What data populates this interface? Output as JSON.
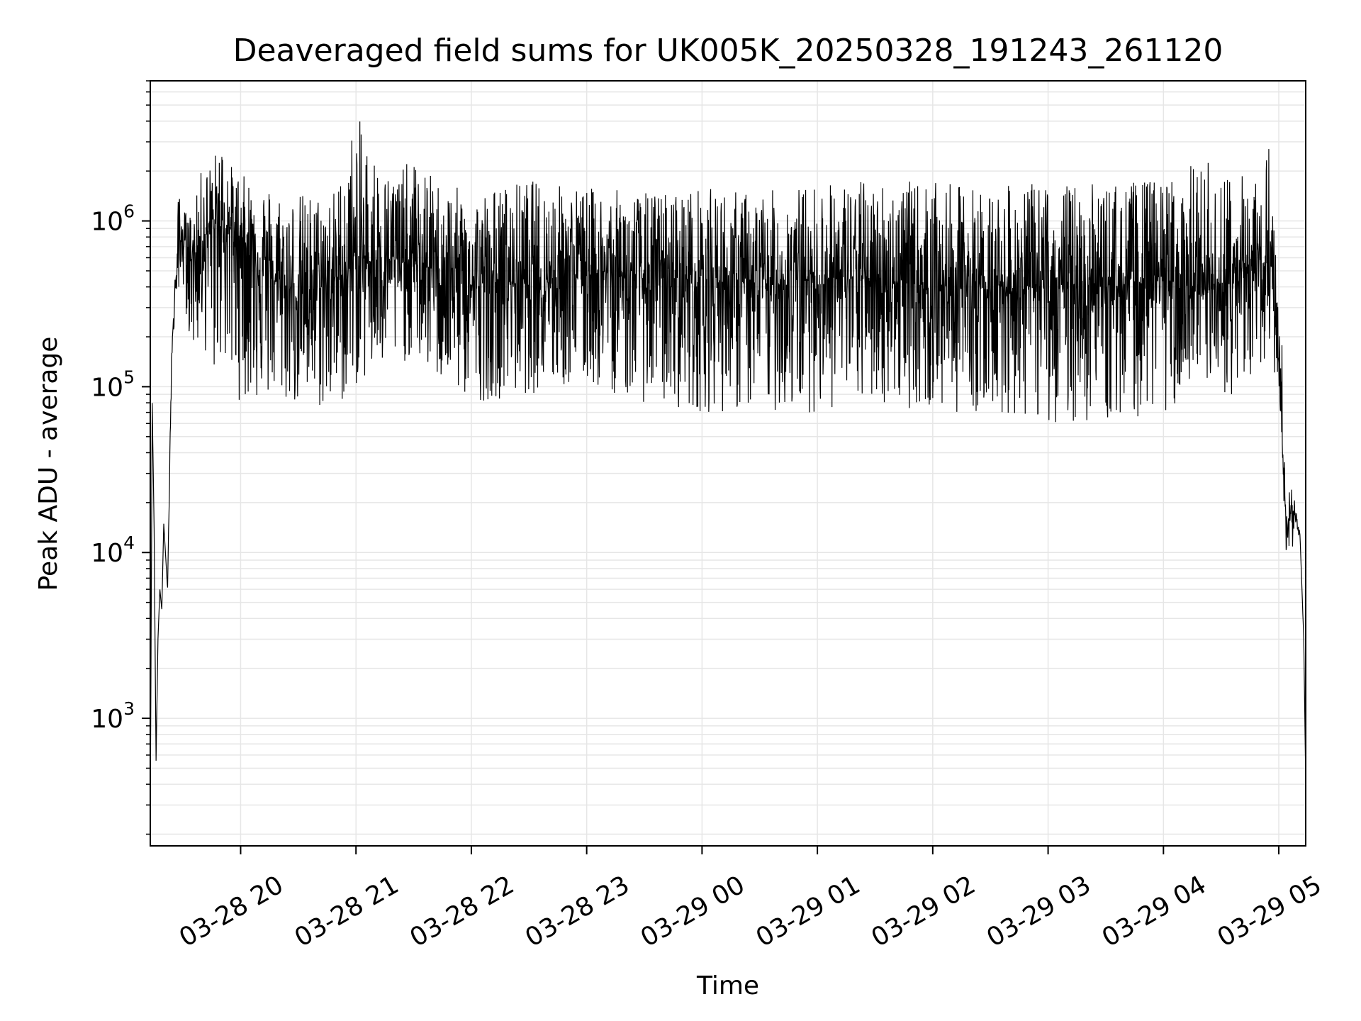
{
  "chart_data": {
    "type": "line",
    "title": "Deaveraged field sums for UK005K_20250328_191243_261120",
    "xlabel": "Time",
    "ylabel": "Peak ADU - average",
    "yscale": "log",
    "ylim": [
      170,
      7000000
    ],
    "xlim": [
      "2025-03-28 19:13",
      "2025-03-29 05:14"
    ],
    "grid": true,
    "line_color": "#000000",
    "grid_color": "#e6e6e6",
    "x_ticks": [
      {
        "value": "2025-03-28 20:00",
        "label": "03-28 20"
      },
      {
        "value": "2025-03-28 21:00",
        "label": "03-28 21"
      },
      {
        "value": "2025-03-28 22:00",
        "label": "03-28 22"
      },
      {
        "value": "2025-03-28 23:00",
        "label": "03-28 23"
      },
      {
        "value": "2025-03-29 00:00",
        "label": "03-29 00"
      },
      {
        "value": "2025-03-29 01:00",
        "label": "03-29 01"
      },
      {
        "value": "2025-03-29 02:00",
        "label": "03-29 02"
      },
      {
        "value": "2025-03-29 03:00",
        "label": "03-29 03"
      },
      {
        "value": "2025-03-29 04:00",
        "label": "03-29 04"
      },
      {
        "value": "2025-03-29 05:00",
        "label": "03-29 05"
      }
    ],
    "y_ticks": [
      {
        "value": 1000,
        "base": "10",
        "exp": "3"
      },
      {
        "value": 10000,
        "base": "10",
        "exp": "4"
      },
      {
        "value": 100000,
        "base": "10",
        "exp": "5"
      },
      {
        "value": 1000000,
        "base": "10",
        "exp": "6"
      }
    ],
    "series": [
      {
        "x": [
          "2025-03-28 19:13",
          "2025-03-28 19:14",
          "2025-03-28 19:15",
          "2025-03-28 19:16",
          "2025-03-28 19:17",
          "2025-03-28 19:18",
          "2025-03-28 19:19",
          "2025-03-28 19:20",
          "2025-03-28 19:22",
          "2025-03-28 19:24",
          "2025-03-28 19:26",
          "2025-03-28 19:28",
          "2025-03-28 19:30",
          "2025-03-28 19:33",
          "2025-03-28 19:36",
          "2025-03-28 19:40",
          "2025-03-28 19:45",
          "2025-03-28 19:50",
          "2025-03-28 19:55",
          "2025-03-28 20:00",
          "2025-03-28 20:10",
          "2025-03-28 20:20",
          "2025-03-28 20:30",
          "2025-03-28 20:40",
          "2025-03-28 20:50",
          "2025-03-28 21:00",
          "2025-03-28 21:15",
          "2025-03-28 21:30",
          "2025-03-28 21:45",
          "2025-03-28 22:00",
          "2025-03-28 22:30",
          "2025-03-28 23:00",
          "2025-03-28 23:30",
          "2025-03-29 00:00",
          "2025-03-29 00:30",
          "2025-03-29 01:00",
          "2025-03-29 01:30",
          "2025-03-29 02:00",
          "2025-03-29 02:30",
          "2025-03-29 03:00",
          "2025-03-29 03:30",
          "2025-03-29 04:00",
          "2025-03-29 04:20",
          "2025-03-29 04:40",
          "2025-03-29 04:55",
          "2025-03-29 05:00",
          "2025-03-29 05:02",
          "2025-03-29 05:04",
          "2025-03-29 05:08",
          "2025-03-29 05:11",
          "2025-03-29 05:13",
          "2025-03-29 05:14"
        ],
        "y": [
          250,
          80000,
          14000,
          550,
          3000,
          6000,
          4500,
          15000,
          6000,
          150000,
          400000,
          700000,
          800000,
          700000,
          600000,
          800000,
          900000,
          1000000,
          900000,
          800000,
          600000,
          400000,
          350000,
          400000,
          450000,
          550000,
          600000,
          550000,
          500000,
          400000,
          450000,
          500000,
          450000,
          450000,
          400000,
          450000,
          450000,
          400000,
          400000,
          400000,
          400000,
          450000,
          350000,
          450000,
          600000,
          150000,
          40000,
          15000,
          18000,
          13000,
          3000,
          400
        ],
        "min": [
          250,
          80000,
          14000,
          550,
          3000,
          6000,
          4500,
          15000,
          6000,
          100000,
          300000,
          400000,
          400000,
          200000,
          150000,
          200000,
          100000,
          150000,
          100000,
          80000,
          80000,
          80000,
          75000,
          70000,
          70000,
          100000,
          120000,
          150000,
          100000,
          80000,
          90000,
          100000,
          80000,
          70000,
          70000,
          70000,
          80000,
          70000,
          70000,
          60000,
          60000,
          70000,
          80000,
          90000,
          150000,
          100000,
          30000,
          9000,
          9500,
          12000,
          3000,
          400
        ],
        "max": [
          250,
          80000,
          14000,
          550,
          3000,
          6000,
          4500,
          15000,
          6000,
          150000,
          500000,
          1800000,
          1200000,
          1100000,
          1200000,
          2200000,
          2300000,
          3300000,
          2200000,
          1900000,
          1800000,
          1600000,
          1500000,
          1500000,
          1600000,
          4500000,
          2000000,
          2300000,
          1700000,
          1500000,
          1800000,
          1600000,
          1500000,
          1600000,
          1500000,
          1700000,
          1800000,
          1700000,
          1600000,
          1700000,
          1700000,
          1800000,
          2400000,
          1900000,
          3100000,
          600000,
          150000,
          28000,
          23000,
          13000,
          3000,
          400
        ]
      }
    ]
  }
}
